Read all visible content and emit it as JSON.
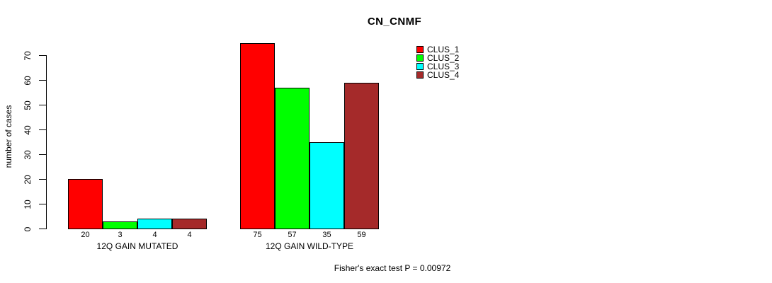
{
  "chart_data": {
    "type": "bar",
    "title": "CN_CNMF",
    "ylabel": "number of cases",
    "xlabel": "",
    "categories": [
      "12Q GAIN MUTATED",
      "12Q GAIN WILD-TYPE"
    ],
    "series": [
      {
        "name": "CLUS_1",
        "color": "#FF0000",
        "values": [
          20,
          75
        ]
      },
      {
        "name": "CLUS_2",
        "color": "#00FF00",
        "values": [
          3,
          57
        ]
      },
      {
        "name": "CLUS_3",
        "color": "#00FFFF",
        "values": [
          4,
          35
        ]
      },
      {
        "name": "CLUS_4",
        "color": "#A52A2A",
        "values": [
          4,
          59
        ]
      }
    ],
    "yticks": [
      0,
      10,
      20,
      30,
      40,
      50,
      60,
      70
    ],
    "ylim": [
      0,
      75
    ],
    "grid": false,
    "bar_value_labels_shown": true,
    "legend_position": "top-right",
    "annotation": "Fisher's exact test P = 0.00972"
  }
}
